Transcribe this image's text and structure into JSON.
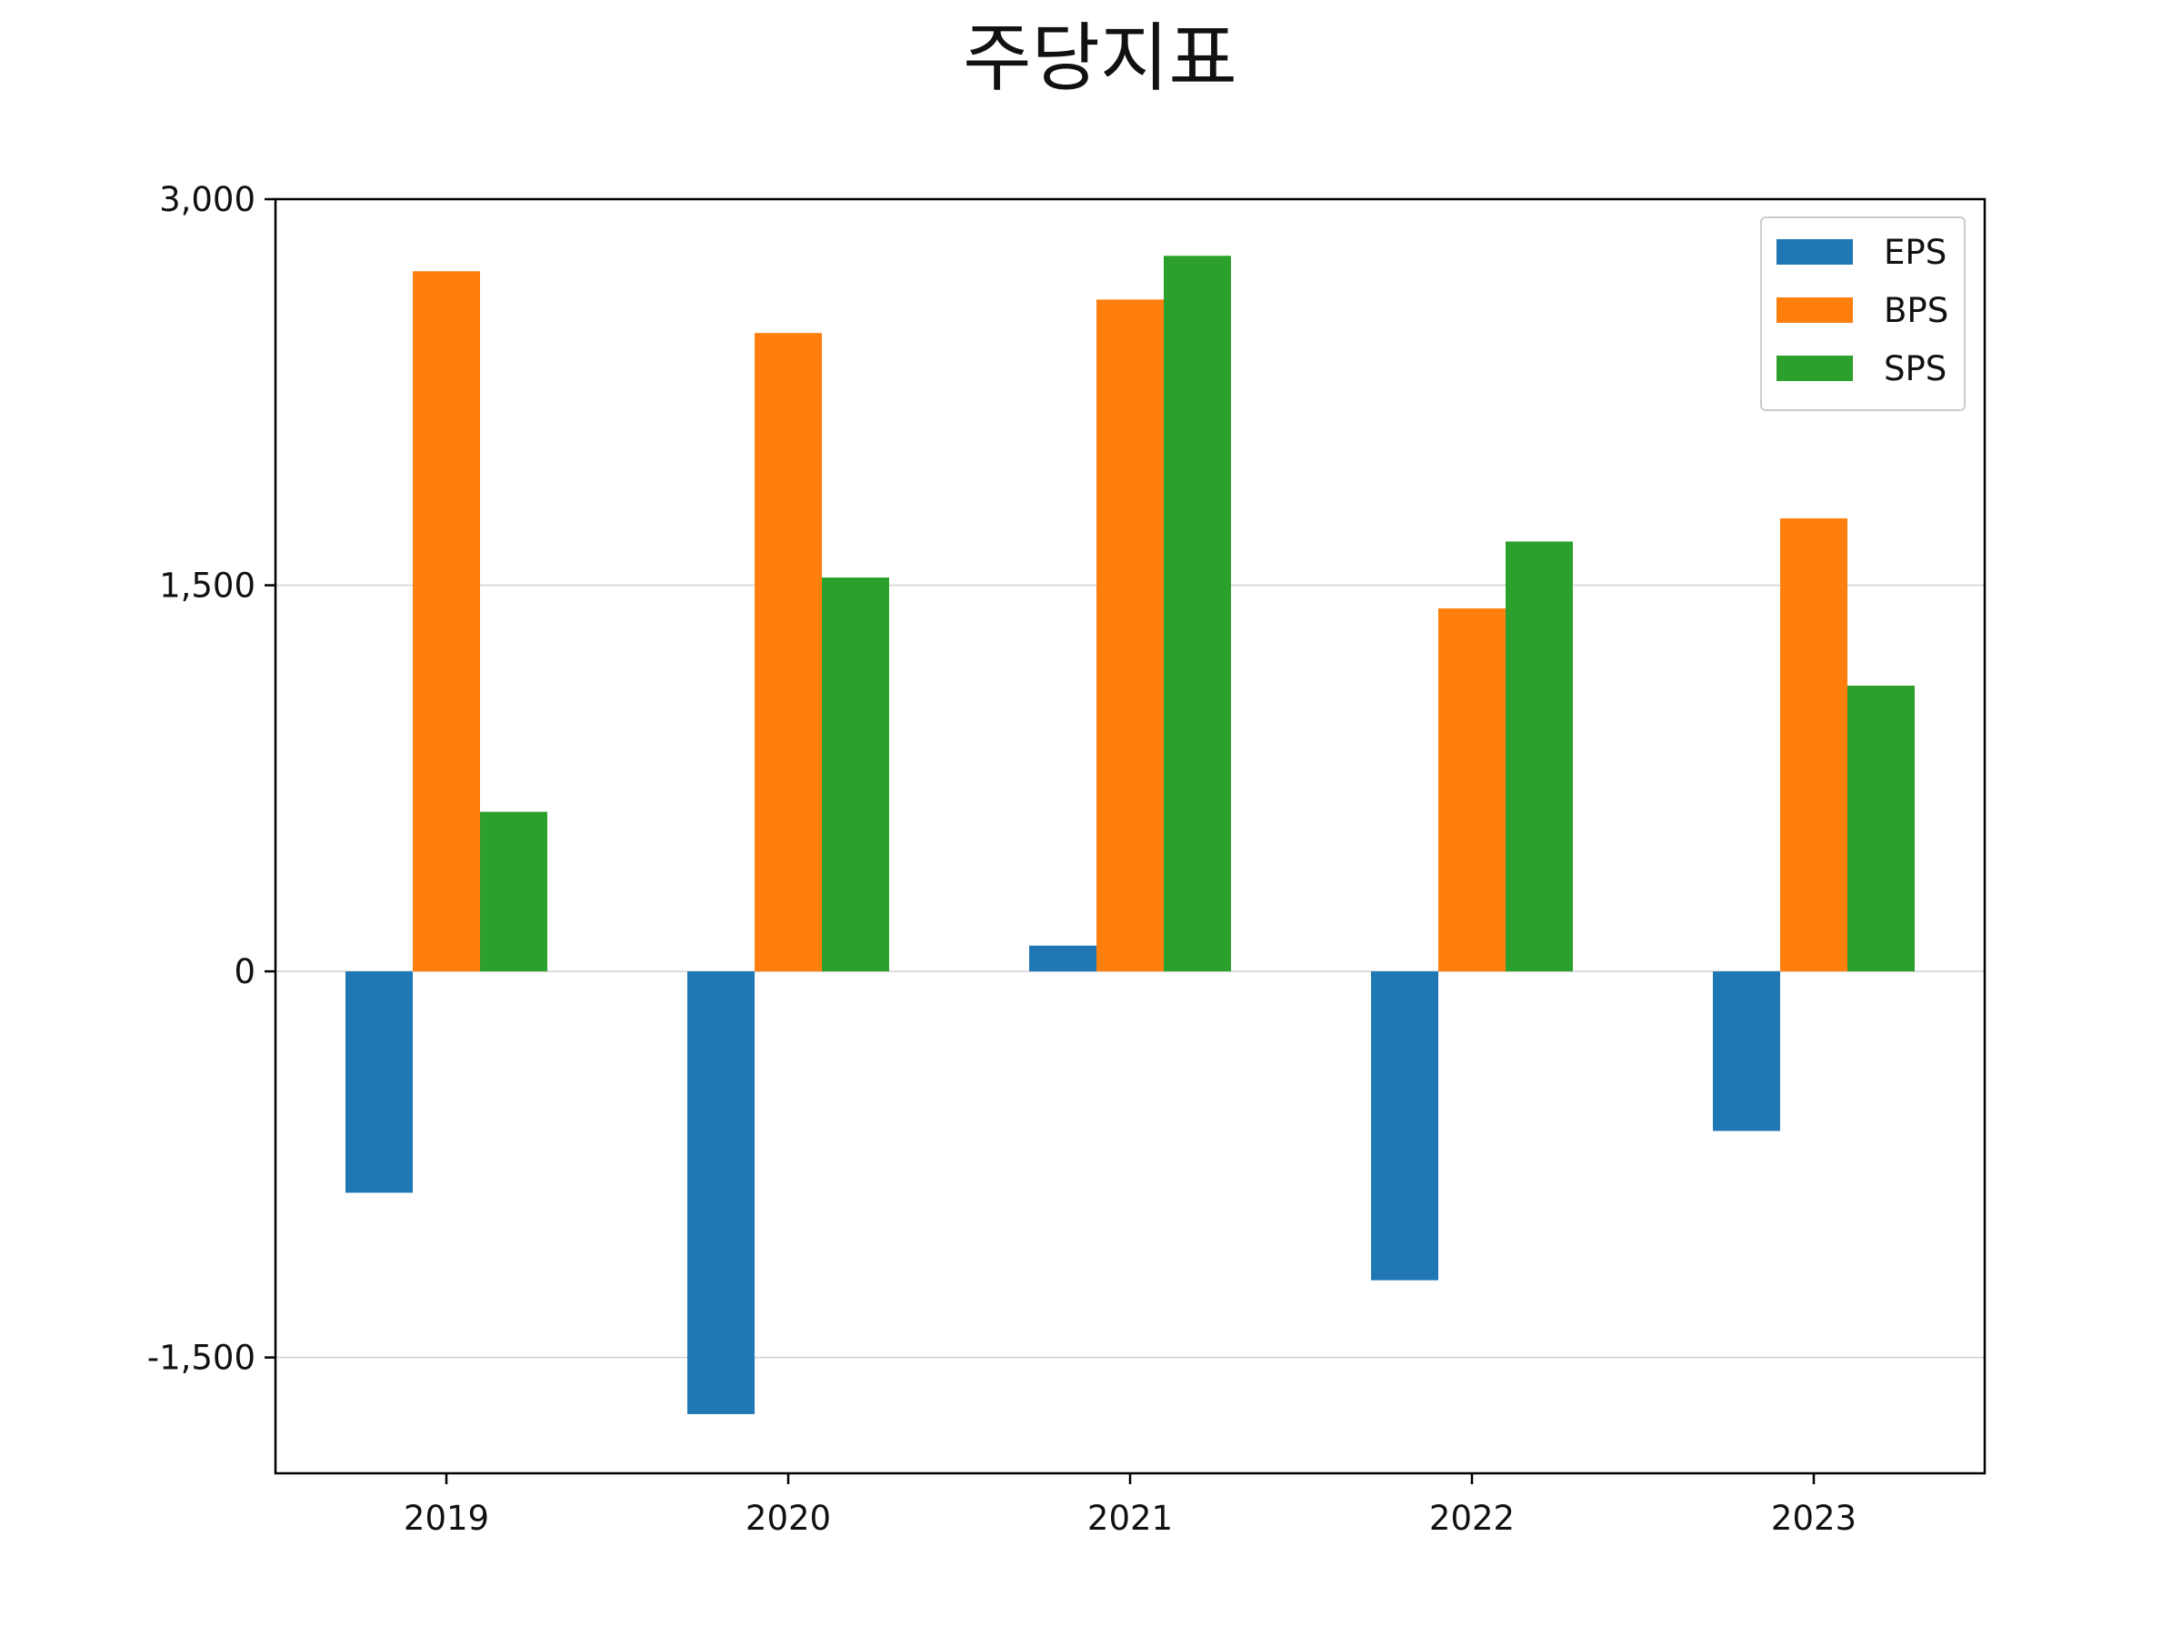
{
  "chart_data": {
    "type": "bar",
    "title": "주당지표",
    "xlabel": "",
    "ylabel": "",
    "categories": [
      "2019",
      "2020",
      "2021",
      "2022",
      "2023"
    ],
    "series": [
      {
        "name": "EPS",
        "color": "#1f77b4",
        "values": [
          -860,
          -1720,
          100,
          -1200,
          -620
        ]
      },
      {
        "name": "BPS",
        "color": "#ff7f0e",
        "values": [
          2720,
          2480,
          2610,
          1410,
          1760
        ]
      },
      {
        "name": "SPS",
        "color": "#2ca02c",
        "values": [
          620,
          1530,
          2780,
          1670,
          1110
        ]
      }
    ],
    "yticks": [
      -1500,
      0,
      1500,
      3000
    ],
    "ytick_labels": [
      "-1,500",
      "0",
      "1,500",
      "3,000"
    ],
    "ylim": [
      -1950,
      3000
    ],
    "grid": "horizontal",
    "legend_position": "top-right"
  }
}
